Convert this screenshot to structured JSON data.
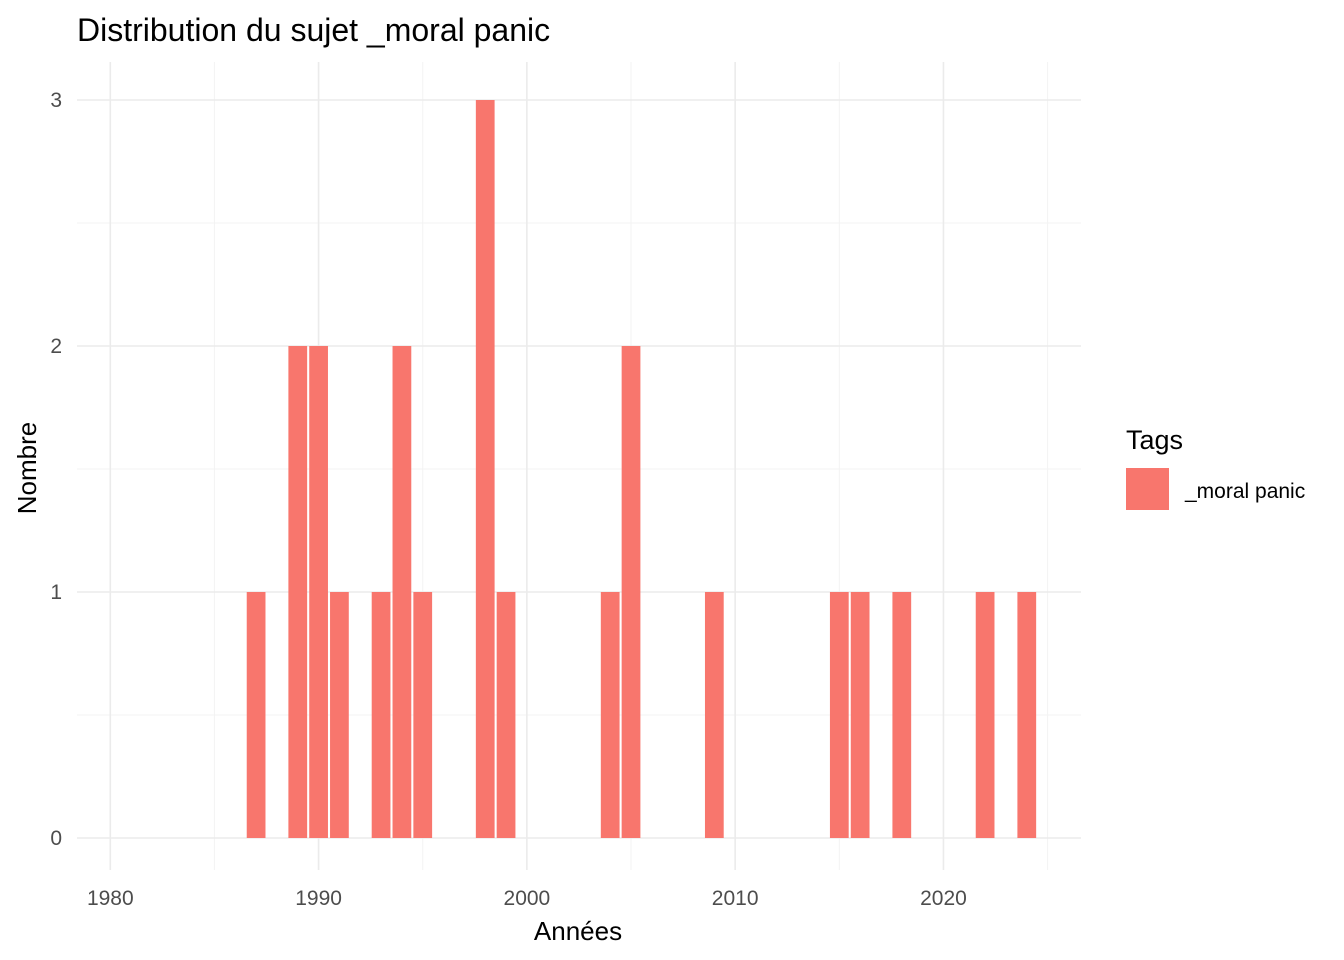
{
  "chart_data": {
    "type": "bar",
    "title": "Distribution du sujet _moral panic",
    "xlabel": "Années",
    "ylabel": "Nombre",
    "xlim": [
      1978.5,
      1986.5
    ],
    "xticks": [
      1980,
      1990,
      2000,
      2010,
      2020
    ],
    "yticks": [
      0,
      1,
      2,
      3
    ],
    "ylim": [
      0,
      3
    ],
    "grid": true,
    "legend": {
      "title": "Tags",
      "position": "right"
    },
    "series": [
      {
        "name": "_moral panic",
        "color": "#F8766D",
        "x": [
          1987,
          1989,
          1990,
          1991,
          1993,
          1994,
          1995,
          1998,
          1999,
          2004,
          2005,
          2009,
          2015,
          2016,
          2018,
          2022,
          2024
        ],
        "values": [
          1,
          2,
          2,
          1,
          1,
          2,
          1,
          3,
          1,
          1,
          2,
          1,
          1,
          1,
          1,
          1,
          1
        ]
      }
    ]
  }
}
